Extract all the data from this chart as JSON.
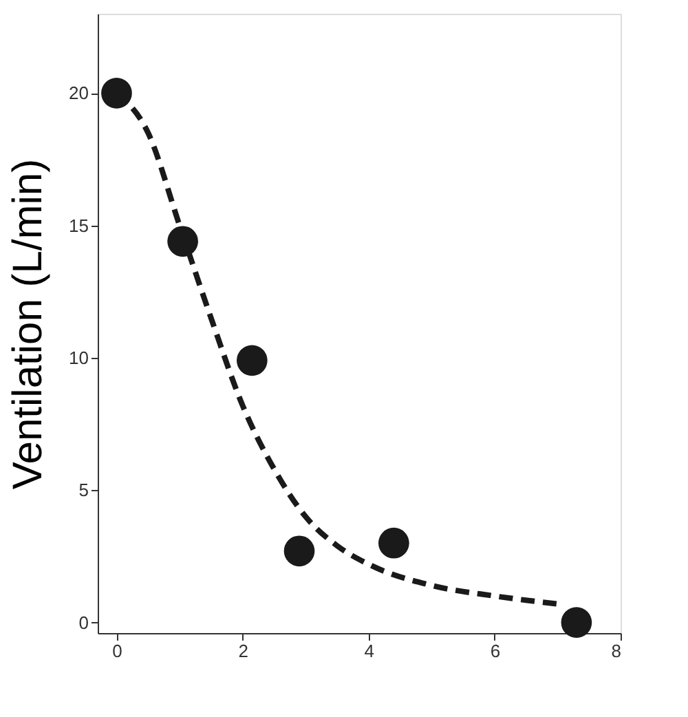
{
  "chart_data": {
    "type": "scatter",
    "ylabel": "Ventilation (L/min)",
    "xlim": [
      -0.3,
      8
    ],
    "ylim": [
      -0.4,
      23
    ],
    "xticks": [
      0,
      2,
      4,
      6,
      8
    ],
    "yticks": [
      0,
      5,
      10,
      15,
      20
    ],
    "grid": false,
    "series": [
      {
        "marker": "circle",
        "color": "#1a1a1a",
        "x": [
          0,
          1.05,
          2.15,
          2.9,
          4.4,
          7.3
        ],
        "values": [
          20,
          14.4,
          9.9,
          2.7,
          3.0,
          0
        ]
      },
      {
        "type": "line",
        "marker": "none",
        "color": "#1a1a1a",
        "line_style": "dashed",
        "x": [
          0,
          0.5,
          1,
          1.5,
          2,
          2.5,
          3,
          3.5,
          4,
          5,
          6,
          7
        ],
        "values": [
          20,
          18.5,
          15,
          11.5,
          8.2,
          5.8,
          4.0,
          2.9,
          2.2,
          1.4,
          1.0,
          0.7
        ]
      }
    ]
  }
}
